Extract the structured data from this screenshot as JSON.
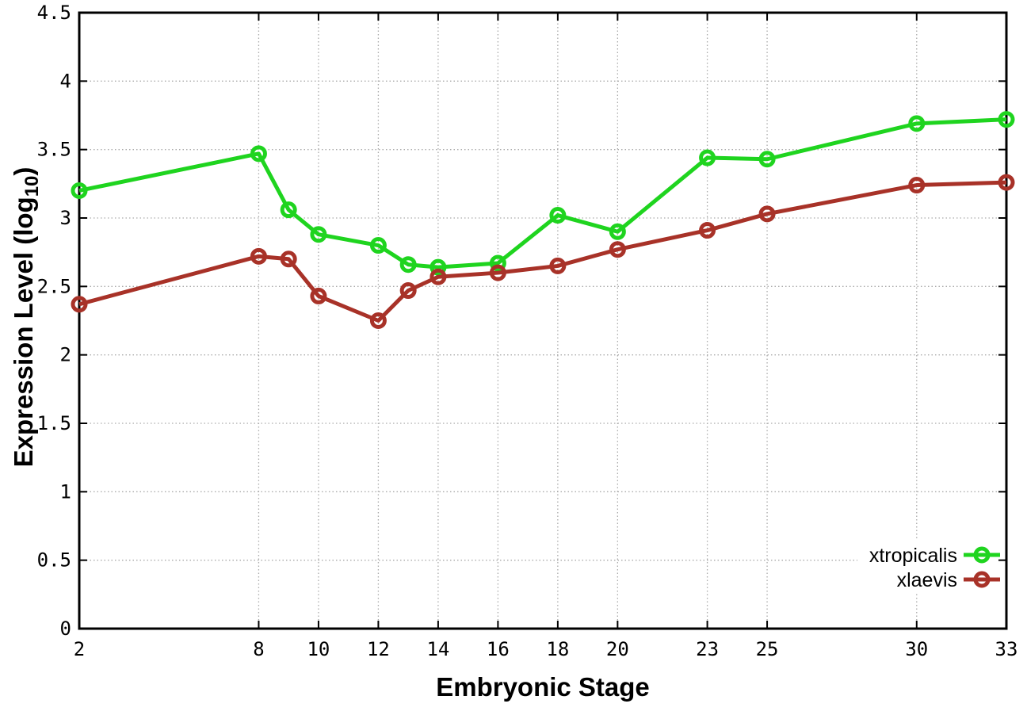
{
  "figure": {
    "background": "#ffffff",
    "xlabel": "Embryonic Stage",
    "ylabel_parts": {
      "pre": "Expression Level (log",
      "sub": "10",
      "post": ")"
    }
  },
  "chart_data": {
    "type": "line",
    "title": "",
    "xlabel": "Embryonic Stage",
    "ylabel": "Expression Level (log10)",
    "x": [
      2,
      8,
      9,
      10,
      12,
      13,
      14,
      16,
      18,
      20,
      23,
      25,
      30,
      33
    ],
    "series": [
      {
        "name": "xtropicalis",
        "color": "#1fd41f",
        "values": [
          3.2,
          3.47,
          3.06,
          2.88,
          2.8,
          2.66,
          2.64,
          2.67,
          3.02,
          2.9,
          3.44,
          3.43,
          3.69,
          3.72
        ]
      },
      {
        "name": "xlaevis",
        "color": "#a83228",
        "values": [
          2.37,
          2.72,
          2.7,
          2.43,
          2.25,
          2.47,
          2.57,
          2.6,
          2.65,
          2.77,
          2.91,
          3.03,
          3.24,
          3.26
        ]
      }
    ],
    "xticks": [
      2,
      8,
      10,
      12,
      14,
      16,
      18,
      20,
      23,
      25,
      30,
      33
    ],
    "yticks": [
      0,
      0.5,
      1,
      1.5,
      2,
      2.5,
      3,
      3.5,
      4,
      4.5
    ],
    "xlim": [
      2,
      33
    ],
    "ylim": [
      0,
      4.5
    ],
    "grid": true,
    "grid_color": "#aaaaaa",
    "border_color": "#000000",
    "marker": "open-circle",
    "legend_position": "bottom-right-inside",
    "legend": [
      "xtropicalis",
      "xlaevis"
    ]
  }
}
